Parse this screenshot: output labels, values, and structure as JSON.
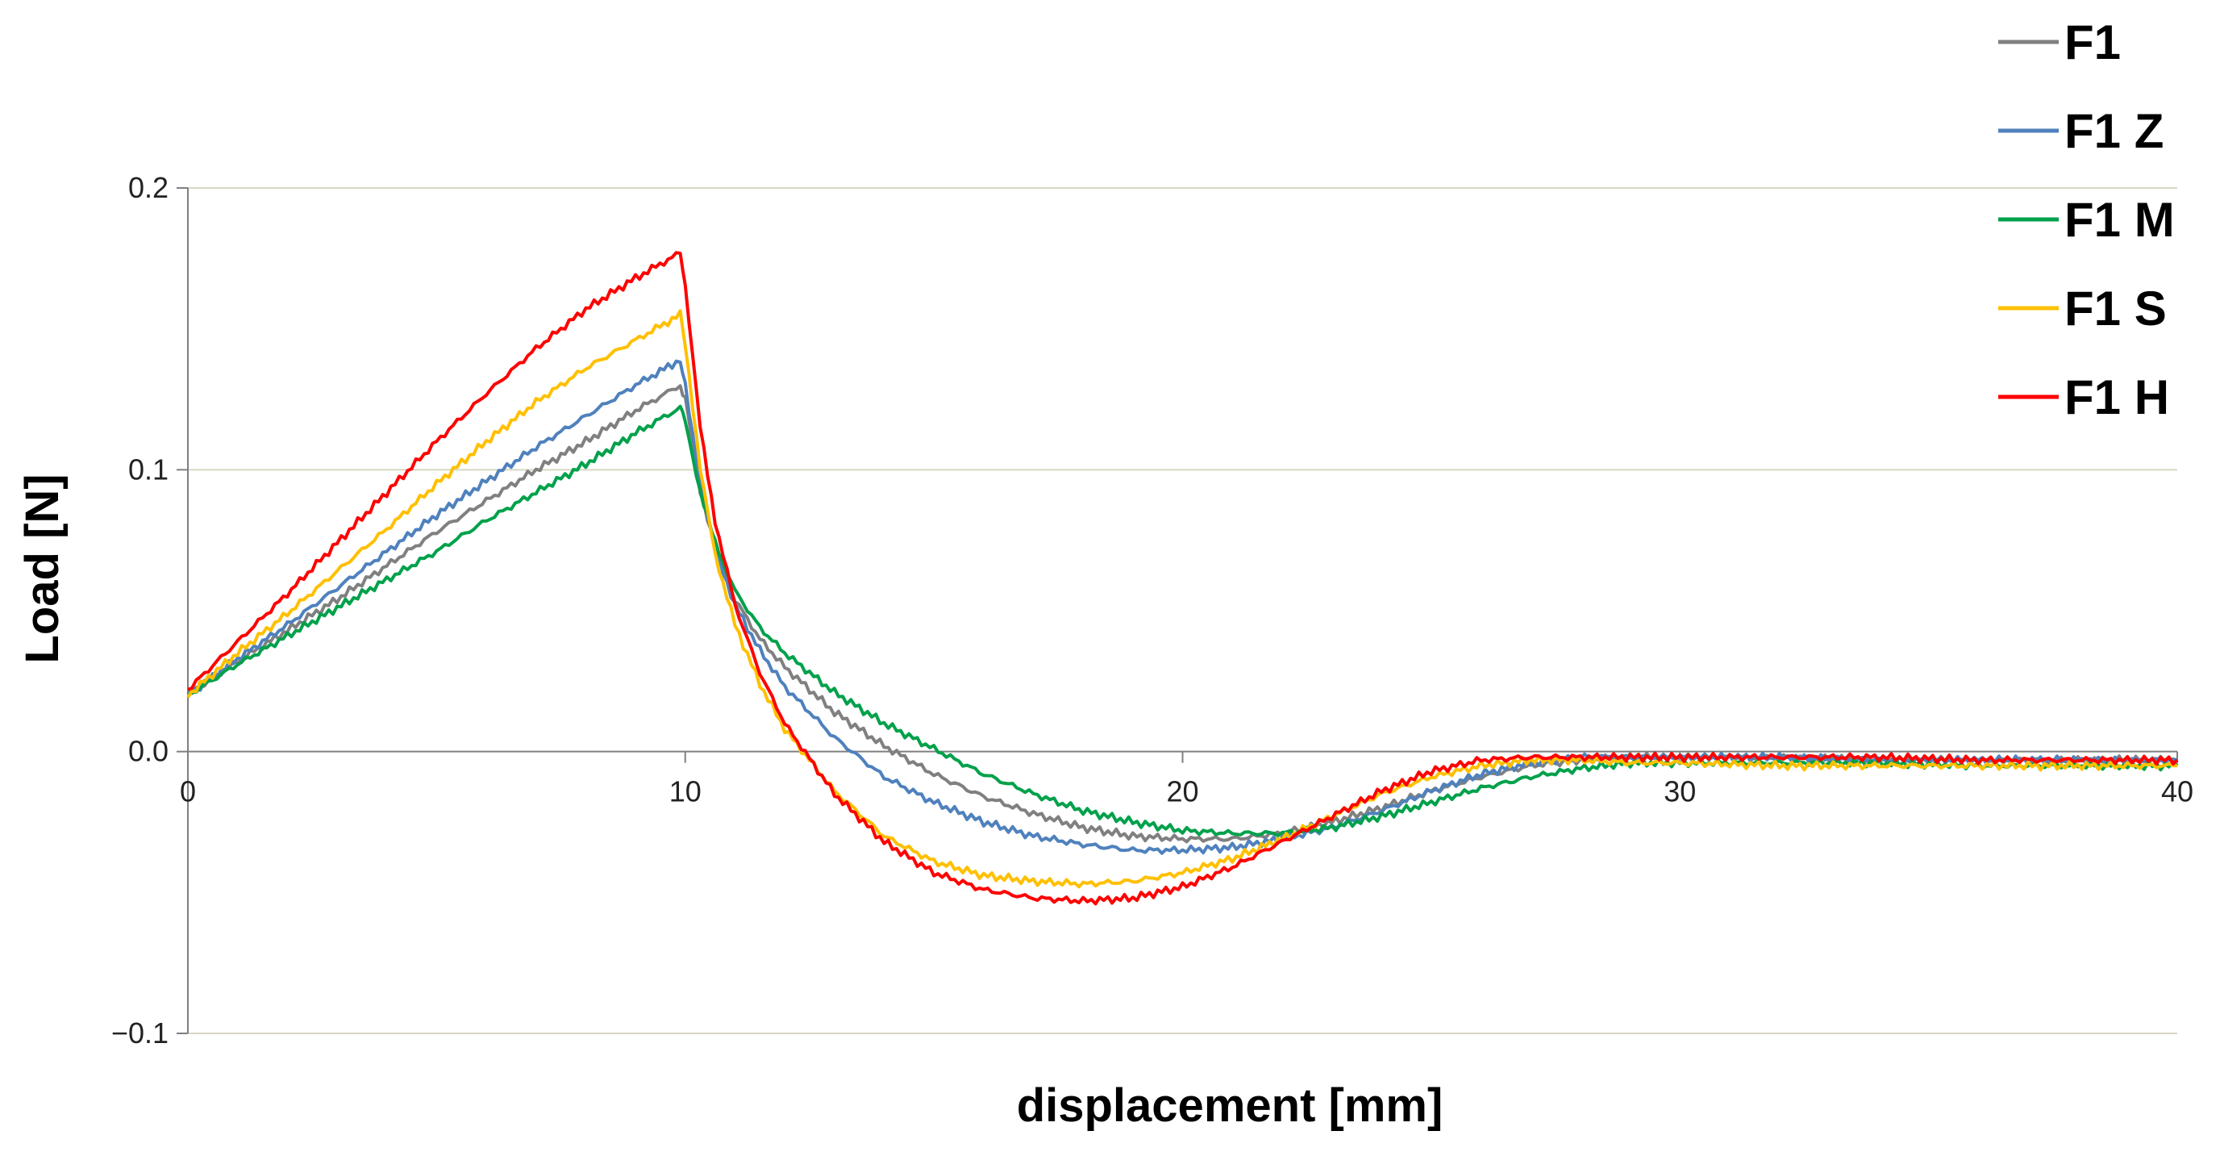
{
  "chart_data": {
    "type": "line",
    "xlabel": "displacement [mm]",
    "ylabel": "Load [N]",
    "xlim": [
      0,
      40
    ],
    "ylim": [
      -0.1,
      0.2
    ],
    "x_ticks": [
      "0",
      "10",
      "20",
      "30",
      "40"
    ],
    "y_ticks": [
      "−0.1",
      "0.0",
      "0.1",
      "0.2"
    ],
    "grid": "horizontal",
    "legend_position": "top-right",
    "series": [
      {
        "name": "F1",
        "color": "#808080",
        "x": [
          0,
          1,
          2,
          3,
          4,
          5,
          6,
          7,
          8,
          9,
          9.9,
          10,
          10.3,
          10.6,
          11,
          11.5,
          12,
          13,
          14,
          15,
          16,
          17,
          18,
          19,
          20,
          21,
          22,
          23,
          24,
          25,
          26,
          27,
          28,
          29,
          30,
          32,
          34,
          36,
          38,
          40
        ],
        "y": [
          0.02,
          0.032,
          0.043,
          0.054,
          0.066,
          0.078,
          0.089,
          0.1,
          0.11,
          0.121,
          0.13,
          0.125,
          0.093,
          0.073,
          0.054,
          0.04,
          0.03,
          0.014,
          0.002,
          -0.008,
          -0.016,
          -0.022,
          -0.027,
          -0.03,
          -0.031,
          -0.031,
          -0.029,
          -0.025,
          -0.02,
          -0.014,
          -0.009,
          -0.005,
          -0.003,
          -0.002,
          -0.002,
          -0.002,
          -0.003,
          -0.003,
          -0.003,
          -0.003
        ]
      },
      {
        "name": "F1 Z",
        "color": "#4F81BD",
        "x": [
          0,
          1,
          2,
          3,
          4,
          5,
          6,
          7,
          8,
          9,
          9.9,
          10,
          10.3,
          10.6,
          11,
          11.5,
          12,
          13,
          14,
          15,
          16,
          17,
          18,
          19,
          20,
          21,
          22,
          23,
          24,
          25,
          26,
          27,
          28,
          29,
          30,
          32,
          34,
          36,
          38,
          40
        ],
        "y": [
          0.02,
          0.033,
          0.045,
          0.058,
          0.071,
          0.084,
          0.096,
          0.108,
          0.119,
          0.13,
          0.139,
          0.13,
          0.095,
          0.072,
          0.052,
          0.036,
          0.023,
          0.005,
          -0.009,
          -0.018,
          -0.025,
          -0.03,
          -0.033,
          -0.035,
          -0.035,
          -0.034,
          -0.031,
          -0.027,
          -0.021,
          -0.014,
          -0.008,
          -0.004,
          -0.002,
          -0.002,
          -0.002,
          -0.002,
          -0.003,
          -0.003,
          -0.003,
          -0.003
        ]
      },
      {
        "name": "F1 M",
        "color": "#00A14B",
        "x": [
          0,
          1,
          2,
          3,
          4,
          5,
          6,
          7,
          8,
          9,
          9.9,
          10,
          10.3,
          10.6,
          11,
          11.5,
          12,
          13,
          14,
          15,
          16,
          17,
          18,
          19,
          20,
          21,
          22,
          23,
          24,
          25,
          26,
          27,
          28,
          29,
          30,
          32,
          34,
          36,
          38,
          40
        ],
        "y": [
          0.02,
          0.031,
          0.041,
          0.051,
          0.061,
          0.071,
          0.082,
          0.092,
          0.102,
          0.113,
          0.122,
          0.118,
          0.092,
          0.074,
          0.057,
          0.044,
          0.035,
          0.021,
          0.01,
          0.001,
          -0.008,
          -0.015,
          -0.021,
          -0.025,
          -0.028,
          -0.029,
          -0.029,
          -0.027,
          -0.023,
          -0.018,
          -0.013,
          -0.009,
          -0.006,
          -0.004,
          -0.004,
          -0.004,
          -0.004,
          -0.005,
          -0.005,
          -0.005
        ]
      },
      {
        "name": "F1 S",
        "color": "#FFC000",
        "x": [
          0,
          1,
          2,
          3,
          4,
          5,
          6,
          7,
          8,
          9,
          9.9,
          10,
          10.3,
          10.6,
          11,
          11.5,
          12,
          13,
          14,
          15,
          16,
          17,
          18,
          19,
          20,
          21,
          22,
          23,
          24,
          25,
          26,
          27,
          28,
          29,
          30,
          32,
          34,
          36,
          38,
          40
        ],
        "y": [
          0.02,
          0.035,
          0.049,
          0.064,
          0.079,
          0.095,
          0.11,
          0.124,
          0.136,
          0.146,
          0.155,
          0.145,
          0.1,
          0.07,
          0.045,
          0.024,
          0.008,
          -0.014,
          -0.03,
          -0.039,
          -0.044,
          -0.046,
          -0.047,
          -0.046,
          -0.043,
          -0.038,
          -0.031,
          -0.023,
          -0.015,
          -0.009,
          -0.005,
          -0.003,
          -0.003,
          -0.004,
          -0.004,
          -0.005,
          -0.005,
          -0.005,
          -0.005,
          -0.005
        ]
      },
      {
        "name": "F1 H",
        "color": "#FF0000",
        "x": [
          0,
          1,
          2,
          3,
          4,
          5,
          6,
          7,
          8,
          9,
          9.9,
          10,
          10.3,
          10.6,
          11,
          11.5,
          12,
          13,
          14,
          15,
          16,
          17,
          18,
          19,
          20,
          21,
          22,
          23,
          24,
          25,
          26,
          27,
          28,
          29,
          30,
          32,
          34,
          36,
          38,
          40
        ],
        "y": [
          0.022,
          0.039,
          0.056,
          0.074,
          0.092,
          0.11,
          0.127,
          0.143,
          0.157,
          0.168,
          0.177,
          0.165,
          0.115,
          0.082,
          0.052,
          0.028,
          0.01,
          -0.015,
          -0.032,
          -0.043,
          -0.049,
          -0.052,
          -0.053,
          -0.052,
          -0.048,
          -0.041,
          -0.032,
          -0.023,
          -0.014,
          -0.007,
          -0.003,
          -0.002,
          -0.002,
          -0.002,
          -0.002,
          -0.002,
          -0.002,
          -0.003,
          -0.003,
          -0.003
        ]
      }
    ]
  }
}
